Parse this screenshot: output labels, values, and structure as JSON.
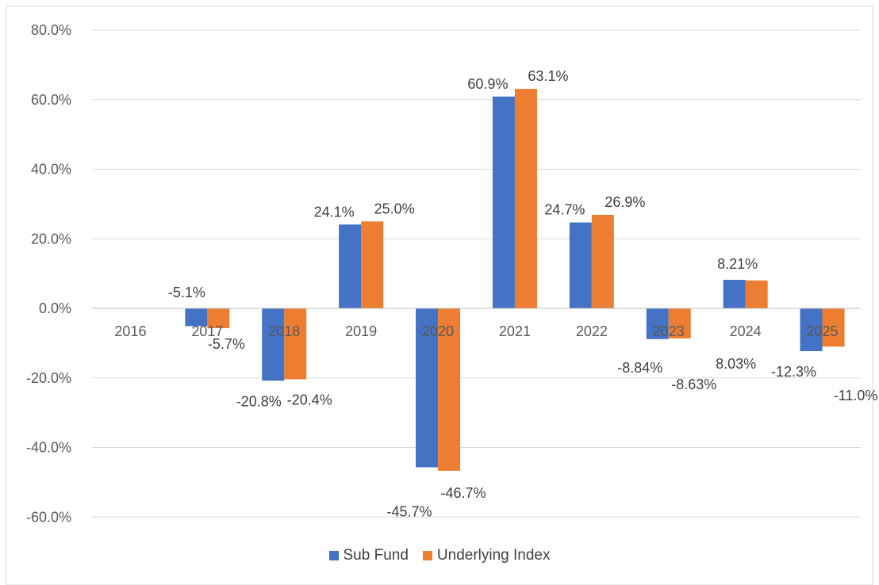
{
  "chart_data": {
    "type": "bar",
    "title": "",
    "xlabel": "",
    "ylabel": "",
    "ylim": [
      -70,
      80
    ],
    "yticks": [
      "80.0%",
      "60.0%",
      "40.0%",
      "20.0%",
      "0.0%",
      "-20.0%",
      "-40.0%",
      "-60.0%"
    ],
    "categories": [
      "2016",
      "2017",
      "2018",
      "2019",
      "2020",
      "2021",
      "2022",
      "2023",
      "2024",
      "2025"
    ],
    "series": [
      {
        "name": "Sub Fund",
        "color": "#4472C4",
        "values": [
          null,
          -5.1,
          -20.8,
          24.1,
          -45.7,
          60.9,
          24.7,
          -8.84,
          8.21,
          -12.3
        ],
        "labels": [
          "",
          "-5.1%",
          "-20.8%",
          "24.1%",
          "-45.7%",
          "60.9%",
          "24.7%",
          "-8.84%",
          "8.21%",
          "-12.3%"
        ]
      },
      {
        "name": "Underlying Index",
        "color": "#ED7D31",
        "values": [
          null,
          -5.7,
          -20.4,
          25.0,
          -46.7,
          63.1,
          26.9,
          -8.63,
          8.03,
          -11.0
        ],
        "labels": [
          "",
          "-5.7%",
          "-20.4%",
          "25.0%",
          "-46.7%",
          "63.1%",
          "26.9%",
          "-8.63%",
          "8.03%",
          "-11.0%"
        ]
      }
    ],
    "grid": true,
    "legend": "bottom"
  }
}
